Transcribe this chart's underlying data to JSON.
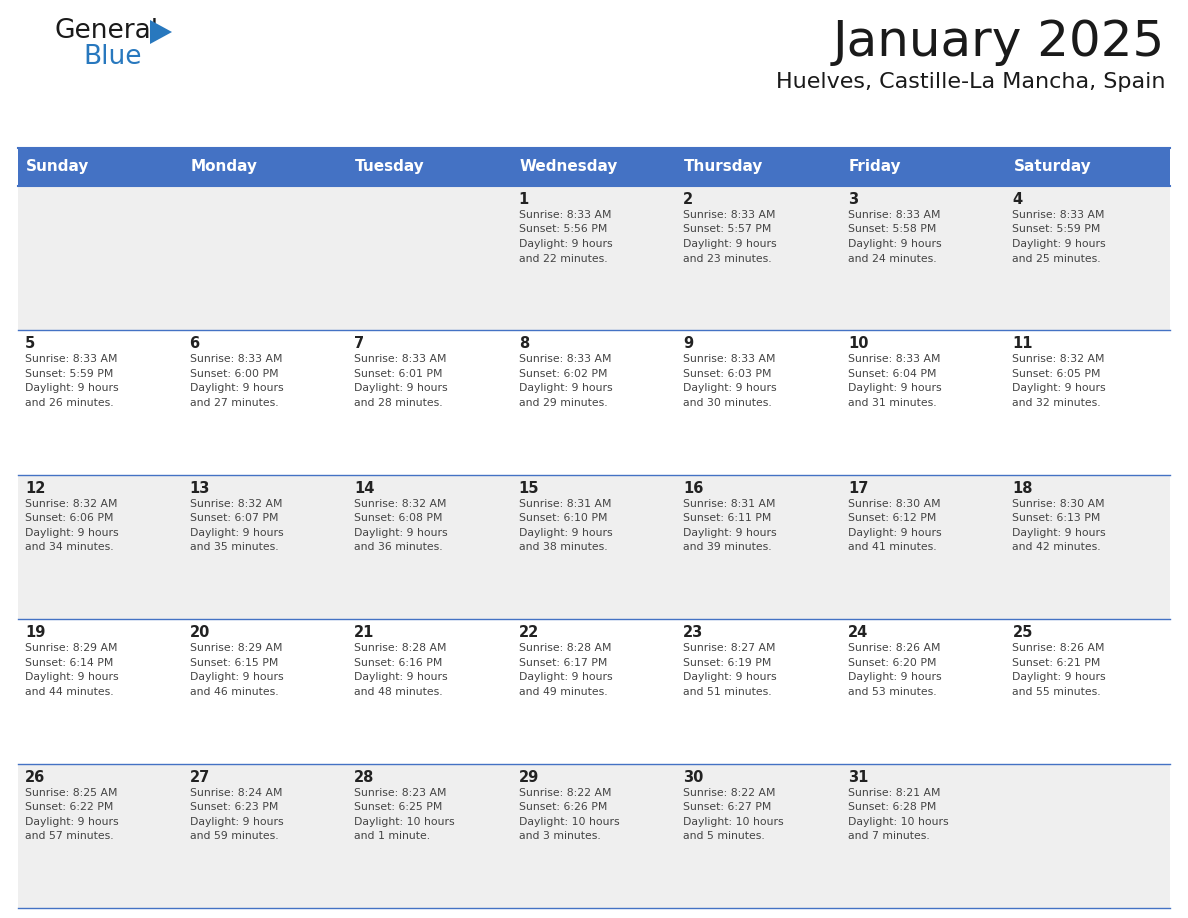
{
  "title": "January 2025",
  "subtitle": "Huelves, Castille-La Mancha, Spain",
  "days_of_week": [
    "Sunday",
    "Monday",
    "Tuesday",
    "Wednesday",
    "Thursday",
    "Friday",
    "Saturday"
  ],
  "header_bg": "#4472C4",
  "header_text_color": "#FFFFFF",
  "cell_bg_row0": "#EFEFEF",
  "cell_bg_row1": "#FFFFFF",
  "cell_bg_row2": "#EFEFEF",
  "cell_bg_row3": "#FFFFFF",
  "cell_bg_row4": "#EFEFEF",
  "cell_text_color": "#444444",
  "day_num_color": "#222222",
  "border_color": "#4472C4",
  "title_color": "#1a1a1a",
  "subtitle_color": "#1a1a1a",
  "logo_general_color": "#1a1a1a",
  "logo_blue_color": "#2878BE",
  "logo_triangle_color": "#2878BE",
  "calendar_data": [
    {
      "day": 1,
      "col": 3,
      "row": 0,
      "sunrise": "8:33 AM",
      "sunset": "5:56 PM",
      "daylight_line1": "Daylight: 9 hours",
      "daylight_line2": "and 22 minutes."
    },
    {
      "day": 2,
      "col": 4,
      "row": 0,
      "sunrise": "8:33 AM",
      "sunset": "5:57 PM",
      "daylight_line1": "Daylight: 9 hours",
      "daylight_line2": "and 23 minutes."
    },
    {
      "day": 3,
      "col": 5,
      "row": 0,
      "sunrise": "8:33 AM",
      "sunset": "5:58 PM",
      "daylight_line1": "Daylight: 9 hours",
      "daylight_line2": "and 24 minutes."
    },
    {
      "day": 4,
      "col": 6,
      "row": 0,
      "sunrise": "8:33 AM",
      "sunset": "5:59 PM",
      "daylight_line1": "Daylight: 9 hours",
      "daylight_line2": "and 25 minutes."
    },
    {
      "day": 5,
      "col": 0,
      "row": 1,
      "sunrise": "8:33 AM",
      "sunset": "5:59 PM",
      "daylight_line1": "Daylight: 9 hours",
      "daylight_line2": "and 26 minutes."
    },
    {
      "day": 6,
      "col": 1,
      "row": 1,
      "sunrise": "8:33 AM",
      "sunset": "6:00 PM",
      "daylight_line1": "Daylight: 9 hours",
      "daylight_line2": "and 27 minutes."
    },
    {
      "day": 7,
      "col": 2,
      "row": 1,
      "sunrise": "8:33 AM",
      "sunset": "6:01 PM",
      "daylight_line1": "Daylight: 9 hours",
      "daylight_line2": "and 28 minutes."
    },
    {
      "day": 8,
      "col": 3,
      "row": 1,
      "sunrise": "8:33 AM",
      "sunset": "6:02 PM",
      "daylight_line1": "Daylight: 9 hours",
      "daylight_line2": "and 29 minutes."
    },
    {
      "day": 9,
      "col": 4,
      "row": 1,
      "sunrise": "8:33 AM",
      "sunset": "6:03 PM",
      "daylight_line1": "Daylight: 9 hours",
      "daylight_line2": "and 30 minutes."
    },
    {
      "day": 10,
      "col": 5,
      "row": 1,
      "sunrise": "8:33 AM",
      "sunset": "6:04 PM",
      "daylight_line1": "Daylight: 9 hours",
      "daylight_line2": "and 31 minutes."
    },
    {
      "day": 11,
      "col": 6,
      "row": 1,
      "sunrise": "8:32 AM",
      "sunset": "6:05 PM",
      "daylight_line1": "Daylight: 9 hours",
      "daylight_line2": "and 32 minutes."
    },
    {
      "day": 12,
      "col": 0,
      "row": 2,
      "sunrise": "8:32 AM",
      "sunset": "6:06 PM",
      "daylight_line1": "Daylight: 9 hours",
      "daylight_line2": "and 34 minutes."
    },
    {
      "day": 13,
      "col": 1,
      "row": 2,
      "sunrise": "8:32 AM",
      "sunset": "6:07 PM",
      "daylight_line1": "Daylight: 9 hours",
      "daylight_line2": "and 35 minutes."
    },
    {
      "day": 14,
      "col": 2,
      "row": 2,
      "sunrise": "8:32 AM",
      "sunset": "6:08 PM",
      "daylight_line1": "Daylight: 9 hours",
      "daylight_line2": "and 36 minutes."
    },
    {
      "day": 15,
      "col": 3,
      "row": 2,
      "sunrise": "8:31 AM",
      "sunset": "6:10 PM",
      "daylight_line1": "Daylight: 9 hours",
      "daylight_line2": "and 38 minutes."
    },
    {
      "day": 16,
      "col": 4,
      "row": 2,
      "sunrise": "8:31 AM",
      "sunset": "6:11 PM",
      "daylight_line1": "Daylight: 9 hours",
      "daylight_line2": "and 39 minutes."
    },
    {
      "day": 17,
      "col": 5,
      "row": 2,
      "sunrise": "8:30 AM",
      "sunset": "6:12 PM",
      "daylight_line1": "Daylight: 9 hours",
      "daylight_line2": "and 41 minutes."
    },
    {
      "day": 18,
      "col": 6,
      "row": 2,
      "sunrise": "8:30 AM",
      "sunset": "6:13 PM",
      "daylight_line1": "Daylight: 9 hours",
      "daylight_line2": "and 42 minutes."
    },
    {
      "day": 19,
      "col": 0,
      "row": 3,
      "sunrise": "8:29 AM",
      "sunset": "6:14 PM",
      "daylight_line1": "Daylight: 9 hours",
      "daylight_line2": "and 44 minutes."
    },
    {
      "day": 20,
      "col": 1,
      "row": 3,
      "sunrise": "8:29 AM",
      "sunset": "6:15 PM",
      "daylight_line1": "Daylight: 9 hours",
      "daylight_line2": "and 46 minutes."
    },
    {
      "day": 21,
      "col": 2,
      "row": 3,
      "sunrise": "8:28 AM",
      "sunset": "6:16 PM",
      "daylight_line1": "Daylight: 9 hours",
      "daylight_line2": "and 48 minutes."
    },
    {
      "day": 22,
      "col": 3,
      "row": 3,
      "sunrise": "8:28 AM",
      "sunset": "6:17 PM",
      "daylight_line1": "Daylight: 9 hours",
      "daylight_line2": "and 49 minutes."
    },
    {
      "day": 23,
      "col": 4,
      "row": 3,
      "sunrise": "8:27 AM",
      "sunset": "6:19 PM",
      "daylight_line1": "Daylight: 9 hours",
      "daylight_line2": "and 51 minutes."
    },
    {
      "day": 24,
      "col": 5,
      "row": 3,
      "sunrise": "8:26 AM",
      "sunset": "6:20 PM",
      "daylight_line1": "Daylight: 9 hours",
      "daylight_line2": "and 53 minutes."
    },
    {
      "day": 25,
      "col": 6,
      "row": 3,
      "sunrise": "8:26 AM",
      "sunset": "6:21 PM",
      "daylight_line1": "Daylight: 9 hours",
      "daylight_line2": "and 55 minutes."
    },
    {
      "day": 26,
      "col": 0,
      "row": 4,
      "sunrise": "8:25 AM",
      "sunset": "6:22 PM",
      "daylight_line1": "Daylight: 9 hours",
      "daylight_line2": "and 57 minutes."
    },
    {
      "day": 27,
      "col": 1,
      "row": 4,
      "sunrise": "8:24 AM",
      "sunset": "6:23 PM",
      "daylight_line1": "Daylight: 9 hours",
      "daylight_line2": "and 59 minutes."
    },
    {
      "day": 28,
      "col": 2,
      "row": 4,
      "sunrise": "8:23 AM",
      "sunset": "6:25 PM",
      "daylight_line1": "Daylight: 10 hours",
      "daylight_line2": "and 1 minute."
    },
    {
      "day": 29,
      "col": 3,
      "row": 4,
      "sunrise": "8:22 AM",
      "sunset": "6:26 PM",
      "daylight_line1": "Daylight: 10 hours",
      "daylight_line2": "and 3 minutes."
    },
    {
      "day": 30,
      "col": 4,
      "row": 4,
      "sunrise": "8:22 AM",
      "sunset": "6:27 PM",
      "daylight_line1": "Daylight: 10 hours",
      "daylight_line2": "and 5 minutes."
    },
    {
      "day": 31,
      "col": 5,
      "row": 4,
      "sunrise": "8:21 AM",
      "sunset": "6:28 PM",
      "daylight_line1": "Daylight: 10 hours",
      "daylight_line2": "and 7 minutes."
    }
  ]
}
